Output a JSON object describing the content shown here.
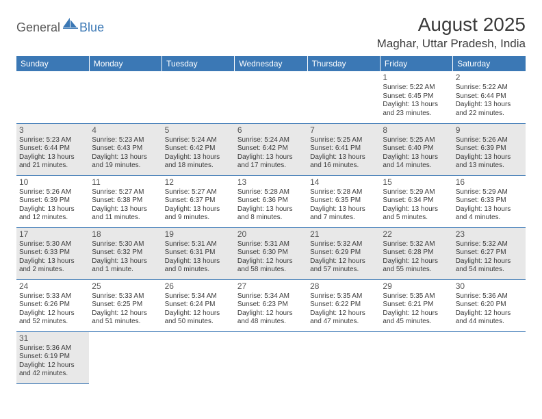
{
  "logo": {
    "general": "General",
    "blue": "Blue"
  },
  "title": "August 2025",
  "location": "Maghar, Uttar Pradesh, India",
  "colors": {
    "header_bg": "#3b78b5",
    "header_text": "#ffffff",
    "row_alt_bg": "#e8e8e8",
    "border": "#3b78b5",
    "text": "#3a3a3a"
  },
  "weekdays": [
    "Sunday",
    "Monday",
    "Tuesday",
    "Wednesday",
    "Thursday",
    "Friday",
    "Saturday"
  ],
  "weeks": [
    [
      null,
      null,
      null,
      null,
      null,
      {
        "d": "1",
        "sr": "5:22 AM",
        "ss": "6:45 PM",
        "dl": "13 hours and 23 minutes."
      },
      {
        "d": "2",
        "sr": "5:22 AM",
        "ss": "6:44 PM",
        "dl": "13 hours and 22 minutes."
      }
    ],
    [
      {
        "d": "3",
        "sr": "5:23 AM",
        "ss": "6:44 PM",
        "dl": "13 hours and 21 minutes."
      },
      {
        "d": "4",
        "sr": "5:23 AM",
        "ss": "6:43 PM",
        "dl": "13 hours and 19 minutes."
      },
      {
        "d": "5",
        "sr": "5:24 AM",
        "ss": "6:42 PM",
        "dl": "13 hours and 18 minutes."
      },
      {
        "d": "6",
        "sr": "5:24 AM",
        "ss": "6:42 PM",
        "dl": "13 hours and 17 minutes."
      },
      {
        "d": "7",
        "sr": "5:25 AM",
        "ss": "6:41 PM",
        "dl": "13 hours and 16 minutes."
      },
      {
        "d": "8",
        "sr": "5:25 AM",
        "ss": "6:40 PM",
        "dl": "13 hours and 14 minutes."
      },
      {
        "d": "9",
        "sr": "5:26 AM",
        "ss": "6:39 PM",
        "dl": "13 hours and 13 minutes."
      }
    ],
    [
      {
        "d": "10",
        "sr": "5:26 AM",
        "ss": "6:39 PM",
        "dl": "13 hours and 12 minutes."
      },
      {
        "d": "11",
        "sr": "5:27 AM",
        "ss": "6:38 PM",
        "dl": "13 hours and 11 minutes."
      },
      {
        "d": "12",
        "sr": "5:27 AM",
        "ss": "6:37 PM",
        "dl": "13 hours and 9 minutes."
      },
      {
        "d": "13",
        "sr": "5:28 AM",
        "ss": "6:36 PM",
        "dl": "13 hours and 8 minutes."
      },
      {
        "d": "14",
        "sr": "5:28 AM",
        "ss": "6:35 PM",
        "dl": "13 hours and 7 minutes."
      },
      {
        "d": "15",
        "sr": "5:29 AM",
        "ss": "6:34 PM",
        "dl": "13 hours and 5 minutes."
      },
      {
        "d": "16",
        "sr": "5:29 AM",
        "ss": "6:33 PM",
        "dl": "13 hours and 4 minutes."
      }
    ],
    [
      {
        "d": "17",
        "sr": "5:30 AM",
        "ss": "6:33 PM",
        "dl": "13 hours and 2 minutes."
      },
      {
        "d": "18",
        "sr": "5:30 AM",
        "ss": "6:32 PM",
        "dl": "13 hours and 1 minute."
      },
      {
        "d": "19",
        "sr": "5:31 AM",
        "ss": "6:31 PM",
        "dl": "13 hours and 0 minutes."
      },
      {
        "d": "20",
        "sr": "5:31 AM",
        "ss": "6:30 PM",
        "dl": "12 hours and 58 minutes."
      },
      {
        "d": "21",
        "sr": "5:32 AM",
        "ss": "6:29 PM",
        "dl": "12 hours and 57 minutes."
      },
      {
        "d": "22",
        "sr": "5:32 AM",
        "ss": "6:28 PM",
        "dl": "12 hours and 55 minutes."
      },
      {
        "d": "23",
        "sr": "5:32 AM",
        "ss": "6:27 PM",
        "dl": "12 hours and 54 minutes."
      }
    ],
    [
      {
        "d": "24",
        "sr": "5:33 AM",
        "ss": "6:26 PM",
        "dl": "12 hours and 52 minutes."
      },
      {
        "d": "25",
        "sr": "5:33 AM",
        "ss": "6:25 PM",
        "dl": "12 hours and 51 minutes."
      },
      {
        "d": "26",
        "sr": "5:34 AM",
        "ss": "6:24 PM",
        "dl": "12 hours and 50 minutes."
      },
      {
        "d": "27",
        "sr": "5:34 AM",
        "ss": "6:23 PM",
        "dl": "12 hours and 48 minutes."
      },
      {
        "d": "28",
        "sr": "5:35 AM",
        "ss": "6:22 PM",
        "dl": "12 hours and 47 minutes."
      },
      {
        "d": "29",
        "sr": "5:35 AM",
        "ss": "6:21 PM",
        "dl": "12 hours and 45 minutes."
      },
      {
        "d": "30",
        "sr": "5:36 AM",
        "ss": "6:20 PM",
        "dl": "12 hours and 44 minutes."
      }
    ],
    [
      {
        "d": "31",
        "sr": "5:36 AM",
        "ss": "6:19 PM",
        "dl": "12 hours and 42 minutes."
      },
      null,
      null,
      null,
      null,
      null,
      null
    ]
  ],
  "labels": {
    "sunrise": "Sunrise: ",
    "sunset": "Sunset: ",
    "daylight": "Daylight: "
  }
}
